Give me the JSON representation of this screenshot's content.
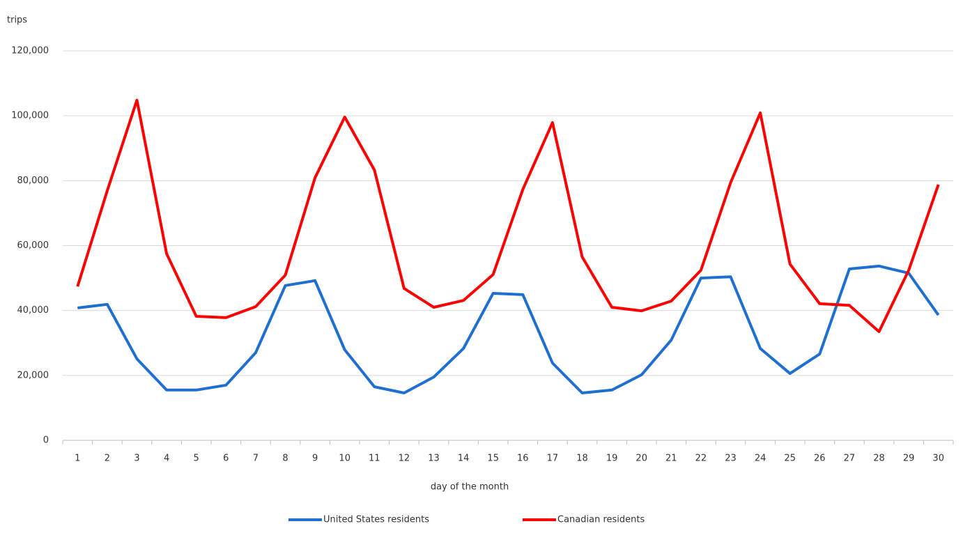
{
  "chart_data": {
    "type": "line",
    "y_label": "trips",
    "x_label": "day of the month",
    "categories": [
      "1",
      "2",
      "3",
      "4",
      "5",
      "6",
      "7",
      "8",
      "9",
      "10",
      "11",
      "12",
      "13",
      "14",
      "15",
      "16",
      "17",
      "18",
      "19",
      "20",
      "21",
      "22",
      "23",
      "24",
      "25",
      "26",
      "27",
      "28",
      "29",
      "30"
    ],
    "series": [
      {
        "name": "United States residents",
        "color": "#1f6fd0",
        "values": [
          40800,
          41900,
          25100,
          15500,
          15500,
          17000,
          27000,
          47700,
          49200,
          27900,
          16500,
          14600,
          19500,
          28300,
          45300,
          44900,
          23800,
          14600,
          15500,
          20200,
          30900,
          50000,
          50400,
          28300,
          20600,
          26600,
          52800,
          53700,
          51500,
          38600
        ]
      },
      {
        "name": "Canadian residents",
        "color": "#ff0000",
        "values": [
          47400,
          76900,
          104800,
          57500,
          38200,
          37800,
          41200,
          50900,
          80900,
          99600,
          83300,
          46800,
          41000,
          43100,
          51100,
          77300,
          97900,
          56500,
          41000,
          39900,
          42900,
          52400,
          79400,
          100900,
          54300,
          42100,
          41600,
          33500,
          52400,
          78800
        ]
      }
    ],
    "ylim": [
      0,
      120000
    ],
    "yticks": [
      0,
      {
        "value": 20000,
        "label": "20,000"
      },
      {
        "value": 40000,
        "label": "40,000"
      },
      {
        "value": 60000,
        "label": "60,000"
      },
      {
        "value": 80000,
        "label": "80,000"
      },
      {
        "value": 100000,
        "label": "100,000"
      },
      {
        "value": 120000,
        "label": "120,000"
      }
    ],
    "grid": true,
    "legend": "bottom"
  }
}
